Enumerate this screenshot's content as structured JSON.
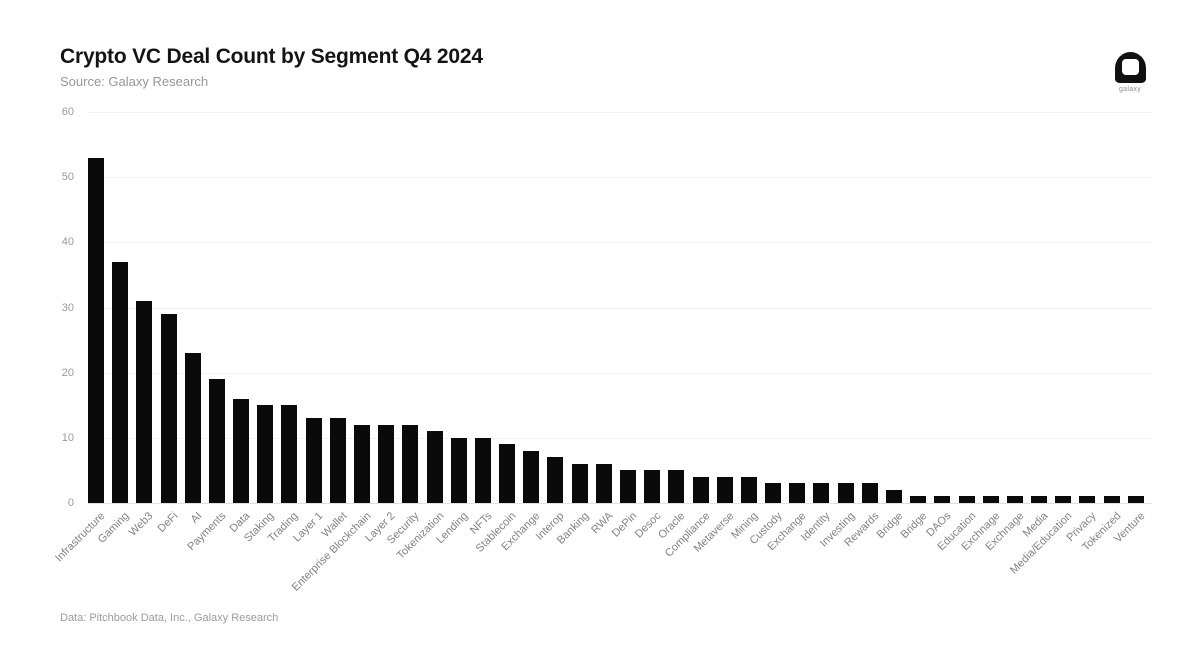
{
  "header": {
    "title": "Crypto VC Deal Count by Segment Q4 2024",
    "subtitle": "Source: Galaxy Research"
  },
  "logo": {
    "label": "galaxy"
  },
  "footer": {
    "text": "Data: Pitchbook Data, Inc., Galaxy Research"
  },
  "chart_data": {
    "type": "bar",
    "title": "Crypto VC Deal Count by Segment Q4 2024",
    "categories": [
      "Infrastructure",
      "Gaming",
      "Web3",
      "DeFi",
      "AI",
      "Payments",
      "Data",
      "Staking",
      "Trading",
      "Layer 1",
      "Wallet",
      "Enterprise Blockchain",
      "Layer 2",
      "Security",
      "Tokenization",
      "Lending",
      "NFTs",
      "Stablecoin",
      "Exchange",
      "Interop",
      "Banking",
      "RWA",
      "DePin",
      "Desoc",
      "Oracle",
      "Compliance",
      "Metaverse",
      "Mining",
      "Custody",
      "Exchange",
      "Identity",
      "Investing",
      "Rewards",
      "Bridge",
      "Bridge",
      "DAOs",
      "Education",
      "Exchnage",
      "Exchnage",
      "Media",
      "Media/Education",
      "Privacy",
      "Tokenized",
      "Venture"
    ],
    "values": [
      53,
      37,
      31,
      29,
      23,
      19,
      16,
      15,
      15,
      13,
      13,
      12,
      12,
      12,
      11,
      10,
      10,
      9,
      8,
      7,
      6,
      6,
      5,
      5,
      5,
      4,
      4,
      4,
      3,
      3,
      3,
      3,
      3,
      2,
      1,
      1,
      1,
      1,
      1,
      1,
      1,
      1,
      1,
      1
    ],
    "xlabel": "",
    "ylabel": "",
    "ylim": [
      0,
      60
    ],
    "yticks": [
      0,
      10,
      20,
      30,
      40,
      50,
      60
    ],
    "grid": "horizontal",
    "legend": "none",
    "bar_color": "#0a0a0a",
    "grid_color": "#f2f2f2",
    "axis_text_color": "#999999"
  }
}
